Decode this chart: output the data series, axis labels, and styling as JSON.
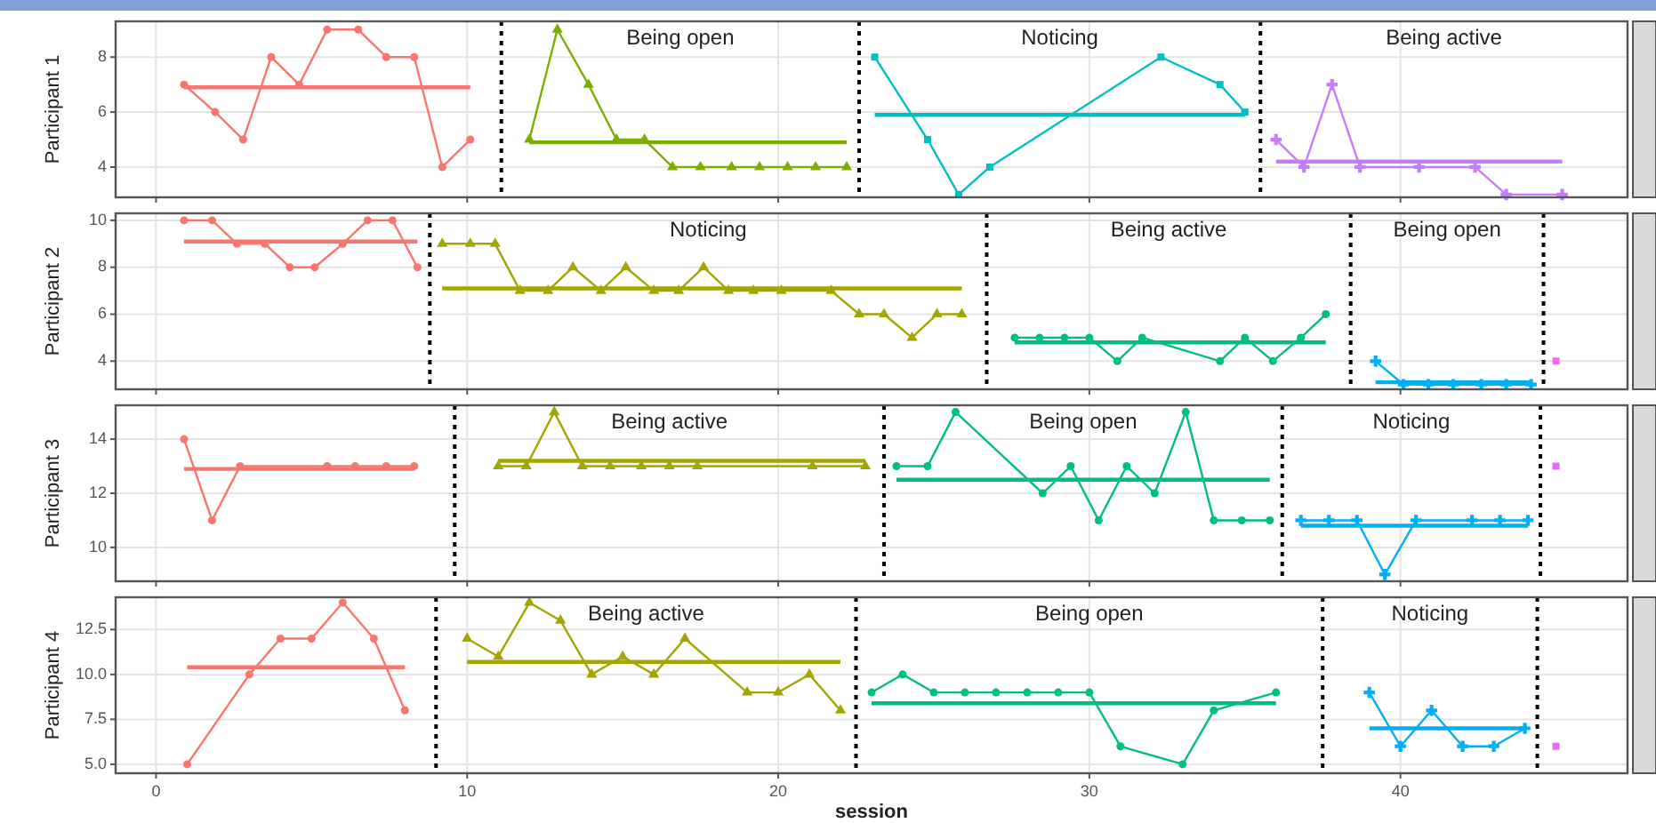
{
  "chart_data": [
    {
      "type": "line",
      "ylabel": "Participant 1",
      "xlim": [
        -1.3,
        47.3
      ],
      "xticks": [
        0,
        10,
        20,
        30,
        40
      ],
      "ylim": [
        2.9,
        9.3
      ],
      "yticks": [
        4,
        6,
        8
      ],
      "grid": true,
      "tick_labels": "y",
      "series": [
        {
          "color": "#f8766d",
          "marker": "circle",
          "x": [
            0.9,
            1.9,
            2.8,
            3.7,
            4.6,
            5.5,
            6.5,
            7.4,
            8.3,
            9.2,
            10.1
          ],
          "values": [
            7,
            6,
            5,
            8,
            7,
            9,
            9,
            8,
            8,
            4,
            5
          ]
        },
        {
          "color": "#f8766d",
          "marker": "none",
          "x": [
            0.9,
            10.1
          ],
          "values": [
            6.9,
            6.9
          ]
        },
        {
          "color": "#7cae00",
          "marker": "triangle",
          "x": [
            12.0,
            12.9,
            13.9,
            14.8,
            15.7,
            16.6,
            17.5,
            18.5,
            19.4,
            20.3,
            21.2,
            22.2
          ],
          "values": [
            5,
            9,
            7,
            5,
            5,
            4,
            4,
            4,
            4,
            4,
            4,
            4
          ]
        },
        {
          "color": "#7cae00",
          "marker": "none",
          "x": [
            12.0,
            22.2
          ],
          "values": [
            4.9,
            4.9
          ]
        },
        {
          "color": "#00bfc4",
          "marker": "square",
          "x": [
            23.1,
            24.8,
            25.8,
            26.8,
            32.3,
            34.2,
            35.0
          ],
          "values": [
            8,
            5,
            3,
            4,
            8,
            7,
            6
          ]
        },
        {
          "color": "#00bfc4",
          "marker": "none",
          "x": [
            23.1,
            35.0
          ],
          "values": [
            5.9,
            5.9
          ]
        },
        {
          "color": "#c77cff",
          "marker": "cross",
          "x": [
            36.0,
            36.9,
            37.8,
            38.7,
            40.6,
            42.4,
            43.4,
            45.2
          ],
          "values": [
            5,
            4,
            7,
            4,
            4,
            4,
            3,
            3
          ]
        },
        {
          "color": "#c77cff",
          "marker": "none",
          "x": [
            36.0,
            45.2
          ],
          "values": [
            4.2,
            4.2
          ]
        }
      ],
      "ref_lines": [
        {
          "axis": "x",
          "value": 11.1,
          "line_style": "dotted",
          "color": "#000000"
        },
        {
          "axis": "x",
          "value": 22.6,
          "line_style": "dotted",
          "color": "#000000"
        },
        {
          "axis": "x",
          "value": 35.5,
          "line_style": "dotted",
          "color": "#000000"
        }
      ],
      "annotations": [
        "Being open",
        "Noticing",
        "Being active"
      ]
    },
    {
      "type": "line",
      "ylabel": "Participant 2",
      "xlim": [
        -1.3,
        47.3
      ],
      "xticks": [
        0,
        10,
        20,
        30,
        40
      ],
      "ylim": [
        2.8,
        10.3
      ],
      "yticks": [
        4,
        6,
        8,
        10
      ],
      "grid": true,
      "tick_labels": "y",
      "series": [
        {
          "color": "#f8766d",
          "marker": "circle",
          "x": [
            0.9,
            1.8,
            2.6,
            3.5,
            4.3,
            5.1,
            6.0,
            6.8,
            7.6,
            8.4
          ],
          "values": [
            10,
            10,
            9,
            9,
            8,
            8,
            9,
            10,
            10,
            8
          ]
        },
        {
          "color": "#f8766d",
          "marker": "none",
          "x": [
            0.9,
            8.4
          ],
          "values": [
            9.1,
            9.1
          ]
        },
        {
          "color": "#a3a500",
          "marker": "triangle",
          "x": [
            9.2,
            10.1,
            10.9,
            11.7,
            12.6,
            13.4,
            14.3,
            15.1,
            16.0,
            16.8,
            17.6,
            18.4,
            19.2,
            20.1,
            21.7,
            22.6,
            23.4,
            24.3,
            25.1,
            25.9
          ],
          "values": [
            9,
            9,
            9,
            7,
            7,
            8,
            7,
            8,
            7,
            7,
            8,
            7,
            7,
            7,
            7,
            6,
            6,
            5,
            6,
            6
          ]
        },
        {
          "color": "#a3a500",
          "marker": "none",
          "x": [
            9.2,
            25.9
          ],
          "values": [
            7.1,
            7.1
          ]
        },
        {
          "color": "#00bf7d",
          "marker": "circle",
          "x": [
            27.6,
            28.4,
            29.2,
            30.0,
            30.9,
            31.7,
            34.2,
            35.0,
            35.9,
            36.8,
            37.6
          ],
          "values": [
            5,
            5,
            5,
            5,
            4,
            5,
            4,
            5,
            4,
            5,
            6
          ]
        },
        {
          "color": "#00bf7d",
          "marker": "none",
          "x": [
            27.6,
            37.6
          ],
          "values": [
            4.8,
            4.8
          ]
        },
        {
          "color": "#00b0f6",
          "marker": "cross",
          "x": [
            39.2,
            40.1,
            40.9,
            41.7,
            42.6,
            43.4,
            44.2
          ],
          "values": [
            4,
            3,
            3,
            3,
            3,
            3,
            3
          ]
        },
        {
          "color": "#00b0f6",
          "marker": "none",
          "x": [
            39.2,
            44.2
          ],
          "values": [
            3.1,
            3.1
          ]
        },
        {
          "color": "#e76bf3",
          "marker": "square",
          "x": [
            45.0
          ],
          "values": [
            4
          ]
        }
      ],
      "ref_lines": [
        {
          "axis": "x",
          "value": 8.8,
          "line_style": "dotted",
          "color": "#000000"
        },
        {
          "axis": "x",
          "value": 26.7,
          "line_style": "dotted",
          "color": "#000000"
        },
        {
          "axis": "x",
          "value": 38.4,
          "line_style": "dotted",
          "color": "#000000"
        },
        {
          "axis": "x",
          "value": 44.6,
          "line_style": "dotted",
          "color": "#000000"
        }
      ],
      "annotations": [
        "Noticing",
        "Being active",
        "Being open"
      ]
    },
    {
      "type": "line",
      "ylabel": "Participant 3",
      "xlim": [
        -1.3,
        47.3
      ],
      "xticks": [
        0,
        10,
        20,
        30,
        40
      ],
      "ylim": [
        8.75,
        15.25
      ],
      "yticks": [
        10,
        12,
        14
      ],
      "grid": true,
      "tick_labels": "y",
      "series": [
        {
          "color": "#f8766d",
          "marker": "circle",
          "x": [
            0.9,
            1.8,
            2.7,
            5.5,
            6.4,
            7.4,
            8.3
          ],
          "values": [
            14,
            11,
            13,
            13,
            13,
            13,
            13
          ]
        },
        {
          "color": "#f8766d",
          "marker": "none",
          "x": [
            0.9,
            8.3
          ],
          "values": [
            12.9,
            12.9
          ]
        },
        {
          "color": "#a3a500",
          "marker": "triangle",
          "x": [
            11.0,
            11.9,
            12.8,
            13.7,
            14.6,
            15.6,
            16.5,
            17.4,
            21.1,
            22.8
          ],
          "values": [
            13,
            13,
            15,
            13,
            13,
            13,
            13,
            13,
            13,
            13
          ]
        },
        {
          "color": "#a3a500",
          "marker": "none",
          "x": [
            11.0,
            22.8
          ],
          "values": [
            13.2,
            13.2
          ]
        },
        {
          "color": "#00bf7d",
          "marker": "circle",
          "x": [
            23.8,
            24.8,
            25.7,
            28.5,
            29.4,
            30.3,
            31.2,
            32.1,
            33.1,
            34.0,
            34.9,
            35.8
          ],
          "values": [
            13,
            13,
            15,
            12,
            13,
            11,
            13,
            12,
            15,
            11,
            11,
            11
          ]
        },
        {
          "color": "#00bf7d",
          "marker": "none",
          "x": [
            23.8,
            35.8
          ],
          "values": [
            12.5,
            12.5
          ]
        },
        {
          "color": "#00b0f6",
          "marker": "cross",
          "x": [
            36.8,
            37.7,
            38.6,
            39.5,
            40.5,
            42.3,
            43.2,
            44.1
          ],
          "values": [
            11,
            11,
            11,
            9,
            11,
            11,
            11,
            11
          ]
        },
        {
          "color": "#00b0f6",
          "marker": "none",
          "x": [
            36.8,
            44.1
          ],
          "values": [
            10.8,
            10.8
          ]
        },
        {
          "color": "#e76bf3",
          "marker": "square",
          "x": [
            45.0
          ],
          "values": [
            13
          ]
        }
      ],
      "ref_lines": [
        {
          "axis": "x",
          "value": 9.6,
          "line_style": "dotted",
          "color": "#000000"
        },
        {
          "axis": "x",
          "value": 23.4,
          "line_style": "dotted",
          "color": "#000000"
        },
        {
          "axis": "x",
          "value": 36.2,
          "line_style": "dotted",
          "color": "#000000"
        },
        {
          "axis": "x",
          "value": 44.5,
          "line_style": "dotted",
          "color": "#000000"
        }
      ],
      "annotations": [
        "Being active",
        "Being open",
        "Noticing"
      ]
    },
    {
      "type": "line",
      "ylabel": "Participant 4",
      "xlabel": "session",
      "xlim": [
        -1.3,
        47.3
      ],
      "xticks": [
        0,
        10,
        20,
        30,
        40
      ],
      "ylim": [
        4.5,
        14.3
      ],
      "yticks": [
        {
          "value": 5,
          "label": "5.0"
        },
        {
          "value": 7.5,
          "label": "7.5"
        },
        {
          "value": 10,
          "label": "10.0"
        },
        {
          "value": 12.5,
          "label": "12.5"
        }
      ],
      "grid": true,
      "series": [
        {
          "color": "#f8766d",
          "marker": "circle",
          "x": [
            1,
            3,
            4,
            5,
            6,
            7,
            8
          ],
          "values": [
            5,
            10,
            12,
            12,
            14,
            12,
            8
          ]
        },
        {
          "color": "#f8766d",
          "marker": "none",
          "x": [
            1,
            8
          ],
          "values": [
            10.4,
            10.4
          ]
        },
        {
          "color": "#a3a500",
          "marker": "triangle",
          "x": [
            10,
            11,
            12,
            13,
            14,
            15,
            16,
            17,
            19,
            20,
            21,
            22
          ],
          "values": [
            12,
            11,
            14,
            13,
            10,
            11,
            10,
            12,
            9,
            9,
            10,
            8
          ]
        },
        {
          "color": "#a3a500",
          "marker": "none",
          "x": [
            10,
            22
          ],
          "values": [
            10.7,
            10.7
          ]
        },
        {
          "color": "#00bf7d",
          "marker": "circle",
          "x": [
            23,
            24,
            25,
            26,
            27,
            28,
            29,
            30,
            31,
            33,
            34,
            36
          ],
          "values": [
            9,
            10,
            9,
            9,
            9,
            9,
            9,
            9,
            6,
            5,
            8,
            9
          ]
        },
        {
          "color": "#00bf7d",
          "marker": "none",
          "x": [
            23,
            36
          ],
          "values": [
            8.4,
            8.4
          ]
        },
        {
          "color": "#00b0f6",
          "marker": "cross",
          "x": [
            39,
            40,
            41,
            42,
            43,
            44
          ],
          "values": [
            9,
            6,
            8,
            6,
            6,
            7
          ]
        },
        {
          "color": "#00b0f6",
          "marker": "none",
          "x": [
            39,
            44
          ],
          "values": [
            7,
            7
          ]
        },
        {
          "color": "#e76bf3",
          "marker": "square",
          "x": [
            45
          ],
          "values": [
            6
          ]
        }
      ],
      "ref_lines": [
        {
          "axis": "x",
          "value": 9.0,
          "line_style": "dotted",
          "color": "#000000"
        },
        {
          "axis": "x",
          "value": 22.5,
          "line_style": "dotted",
          "color": "#000000"
        },
        {
          "axis": "x",
          "value": 37.5,
          "line_style": "dotted",
          "color": "#000000"
        },
        {
          "axis": "x",
          "value": 44.4,
          "line_style": "dotted",
          "color": "#000000"
        }
      ],
      "annotations": [
        "Being active",
        "Being open",
        "Noticing"
      ]
    }
  ]
}
